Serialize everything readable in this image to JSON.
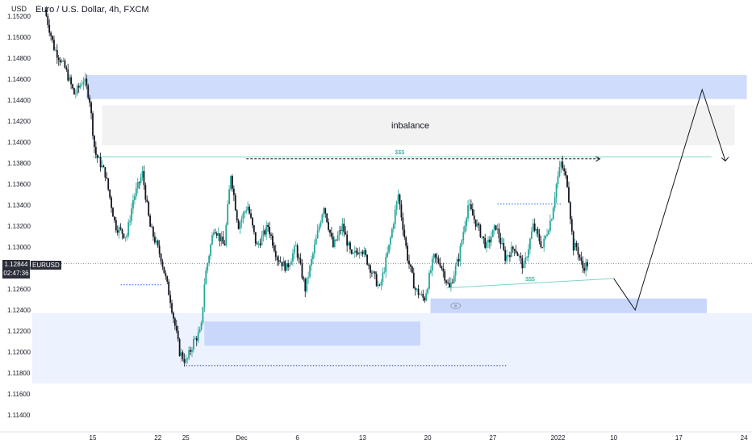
{
  "header": {
    "title": "Euro / U.S. Dollar, 4h, FXCM",
    "unit": "USD"
  },
  "price_badge": {
    "price": "1.12844",
    "countdown": "02:47:36",
    "symbol": "EURUSD"
  },
  "colors": {
    "up": "#26a69a",
    "down": "#131722",
    "zone": "#c9d7fb",
    "zone_light": "#edf2ff",
    "inbalance": "#f2f2f2"
  },
  "chart_data": {
    "type": "candlestick",
    "title": "Euro / U.S. Dollar, 4h, FXCM",
    "ylim": [
      1.1125,
      1.1528
    ],
    "y_ticks": [
      "1.15200",
      "1.15000",
      "1.14800",
      "1.14600",
      "1.14400",
      "1.14200",
      "1.14000",
      "1.13800",
      "1.13600",
      "1.13400",
      "1.13200",
      "1.13000",
      "1.12800",
      "1.12600",
      "1.12400",
      "1.12200",
      "1.12000",
      "1.11800",
      "1.11600",
      "1.11400"
    ],
    "x_ticks": [
      {
        "label": "15",
        "day": 15
      },
      {
        "label": "22",
        "day": 22
      },
      {
        "label": "25",
        "day": 25
      },
      {
        "label": "Dec",
        "day": 31
      },
      {
        "label": "6",
        "day": 37
      },
      {
        "label": "13",
        "day": 44
      },
      {
        "label": "20",
        "day": 51
      },
      {
        "label": "27",
        "day": 58
      },
      {
        "label": "2022",
        "day": 65
      },
      {
        "label": "10",
        "day": 71
      },
      {
        "label": "17",
        "day": 78
      },
      {
        "label": "24",
        "day": 85
      }
    ],
    "anchors": [
      [
        10.0,
        1.1526
      ],
      [
        11.0,
        1.149
      ],
      [
        12.2,
        1.147
      ],
      [
        13.2,
        1.1445
      ],
      [
        14.2,
        1.146
      ],
      [
        14.8,
        1.1443
      ],
      [
        15.4,
        1.139
      ],
      [
        16.5,
        1.137
      ],
      [
        17.6,
        1.132
      ],
      [
        18.8,
        1.131
      ],
      [
        19.5,
        1.1345
      ],
      [
        20.5,
        1.137
      ],
      [
        21.3,
        1.132
      ],
      [
        22.5,
        1.129
      ],
      [
        23.5,
        1.125
      ],
      [
        24.5,
        1.12
      ],
      [
        25.2,
        1.119
      ],
      [
        26.0,
        1.121
      ],
      [
        26.8,
        1.122
      ],
      [
        27.2,
        1.127
      ],
      [
        28.2,
        1.132
      ],
      [
        29.3,
        1.13
      ],
      [
        30.0,
        1.137
      ],
      [
        30.8,
        1.132
      ],
      [
        31.8,
        1.134
      ],
      [
        32.8,
        1.13
      ],
      [
        34.0,
        1.132
      ],
      [
        35.0,
        1.129
      ],
      [
        36.0,
        1.128
      ],
      [
        37.0,
        1.13
      ],
      [
        38.0,
        1.126
      ],
      [
        39.0,
        1.13
      ],
      [
        40.0,
        1.134
      ],
      [
        41.0,
        1.13
      ],
      [
        42.0,
        1.132
      ],
      [
        43.0,
        1.129
      ],
      [
        44.0,
        1.13
      ],
      [
        45.0,
        1.128
      ],
      [
        46.0,
        1.126
      ],
      [
        47.0,
        1.13
      ],
      [
        48.0,
        1.135
      ],
      [
        49.0,
        1.129
      ],
      [
        49.8,
        1.126
      ],
      [
        50.8,
        1.125
      ],
      [
        51.8,
        1.129
      ],
      [
        52.5,
        1.1285
      ],
      [
        53.5,
        1.126
      ],
      [
        54.5,
        1.129
      ],
      [
        55.5,
        1.134
      ],
      [
        56.5,
        1.132
      ],
      [
        57.5,
        1.13
      ],
      [
        58.5,
        1.132
      ],
      [
        59.5,
        1.129
      ],
      [
        60.5,
        1.13
      ],
      [
        61.5,
        1.128
      ],
      [
        62.5,
        1.132
      ],
      [
        63.5,
        1.13
      ],
      [
        64.5,
        1.133
      ],
      [
        65.0,
        1.136
      ],
      [
        65.5,
        1.138
      ],
      [
        66.2,
        1.136
      ],
      [
        66.8,
        1.13
      ],
      [
        67.2,
        1.13
      ],
      [
        67.8,
        1.128
      ],
      [
        68.3,
        1.1284
      ]
    ],
    "annotations": {
      "inbalance_label": "inbalance",
      "liquidity_top_label": "$$$",
      "liquidity_bottom_label": "$$$",
      "upper_supply_zone": {
        "day_from": 14.3,
        "day_to": 85.3,
        "price_low": 1.1441,
        "price_high": 1.1464
      },
      "inbalance_zone": {
        "day_from": 16.0,
        "day_to": 84.0,
        "price_low": 1.1397,
        "price_high": 1.1435
      },
      "demand_zone_wide": {
        "day_from": 0,
        "day_to": 100,
        "price_low": 1.117,
        "price_high": 1.1237
      },
      "demand_zone_a": {
        "day_from": 27.0,
        "day_to": 50.2,
        "price_low": 1.1206,
        "price_high": 1.1229
      },
      "demand_zone_b": {
        "day_from": 51.3,
        "day_to": 81.0,
        "price_low": 1.1237,
        "price_high": 1.1251
      },
      "resistance_line": {
        "day_from": 15.0,
        "day_to": 81.5,
        "price": 1.1386
      },
      "high_dashed": {
        "day_from": 31.5,
        "day_to": 69.5,
        "price": 1.1384
      },
      "low_dotted": {
        "day_from": 25.0,
        "day_to": 59.5,
        "price": 1.1187
      },
      "left_dotted": {
        "day_from": 18.0,
        "day_to": 22.5,
        "price": 1.1264
      },
      "mid_dotted": {
        "day_from": 58.5,
        "day_to": 65.5,
        "price": 1.1341
      },
      "trendline_bottom": {
        "day_from": 53.0,
        "day_to": 71.0,
        "price_from": 1.1261,
        "price_to": 1.127
      },
      "current_price": 1.12844,
      "projection": [
        [
          71.0,
          1.127
        ],
        [
          73.3,
          1.124
        ],
        [
          80.5,
          1.145
        ],
        [
          83.0,
          1.1382
        ]
      ]
    }
  }
}
